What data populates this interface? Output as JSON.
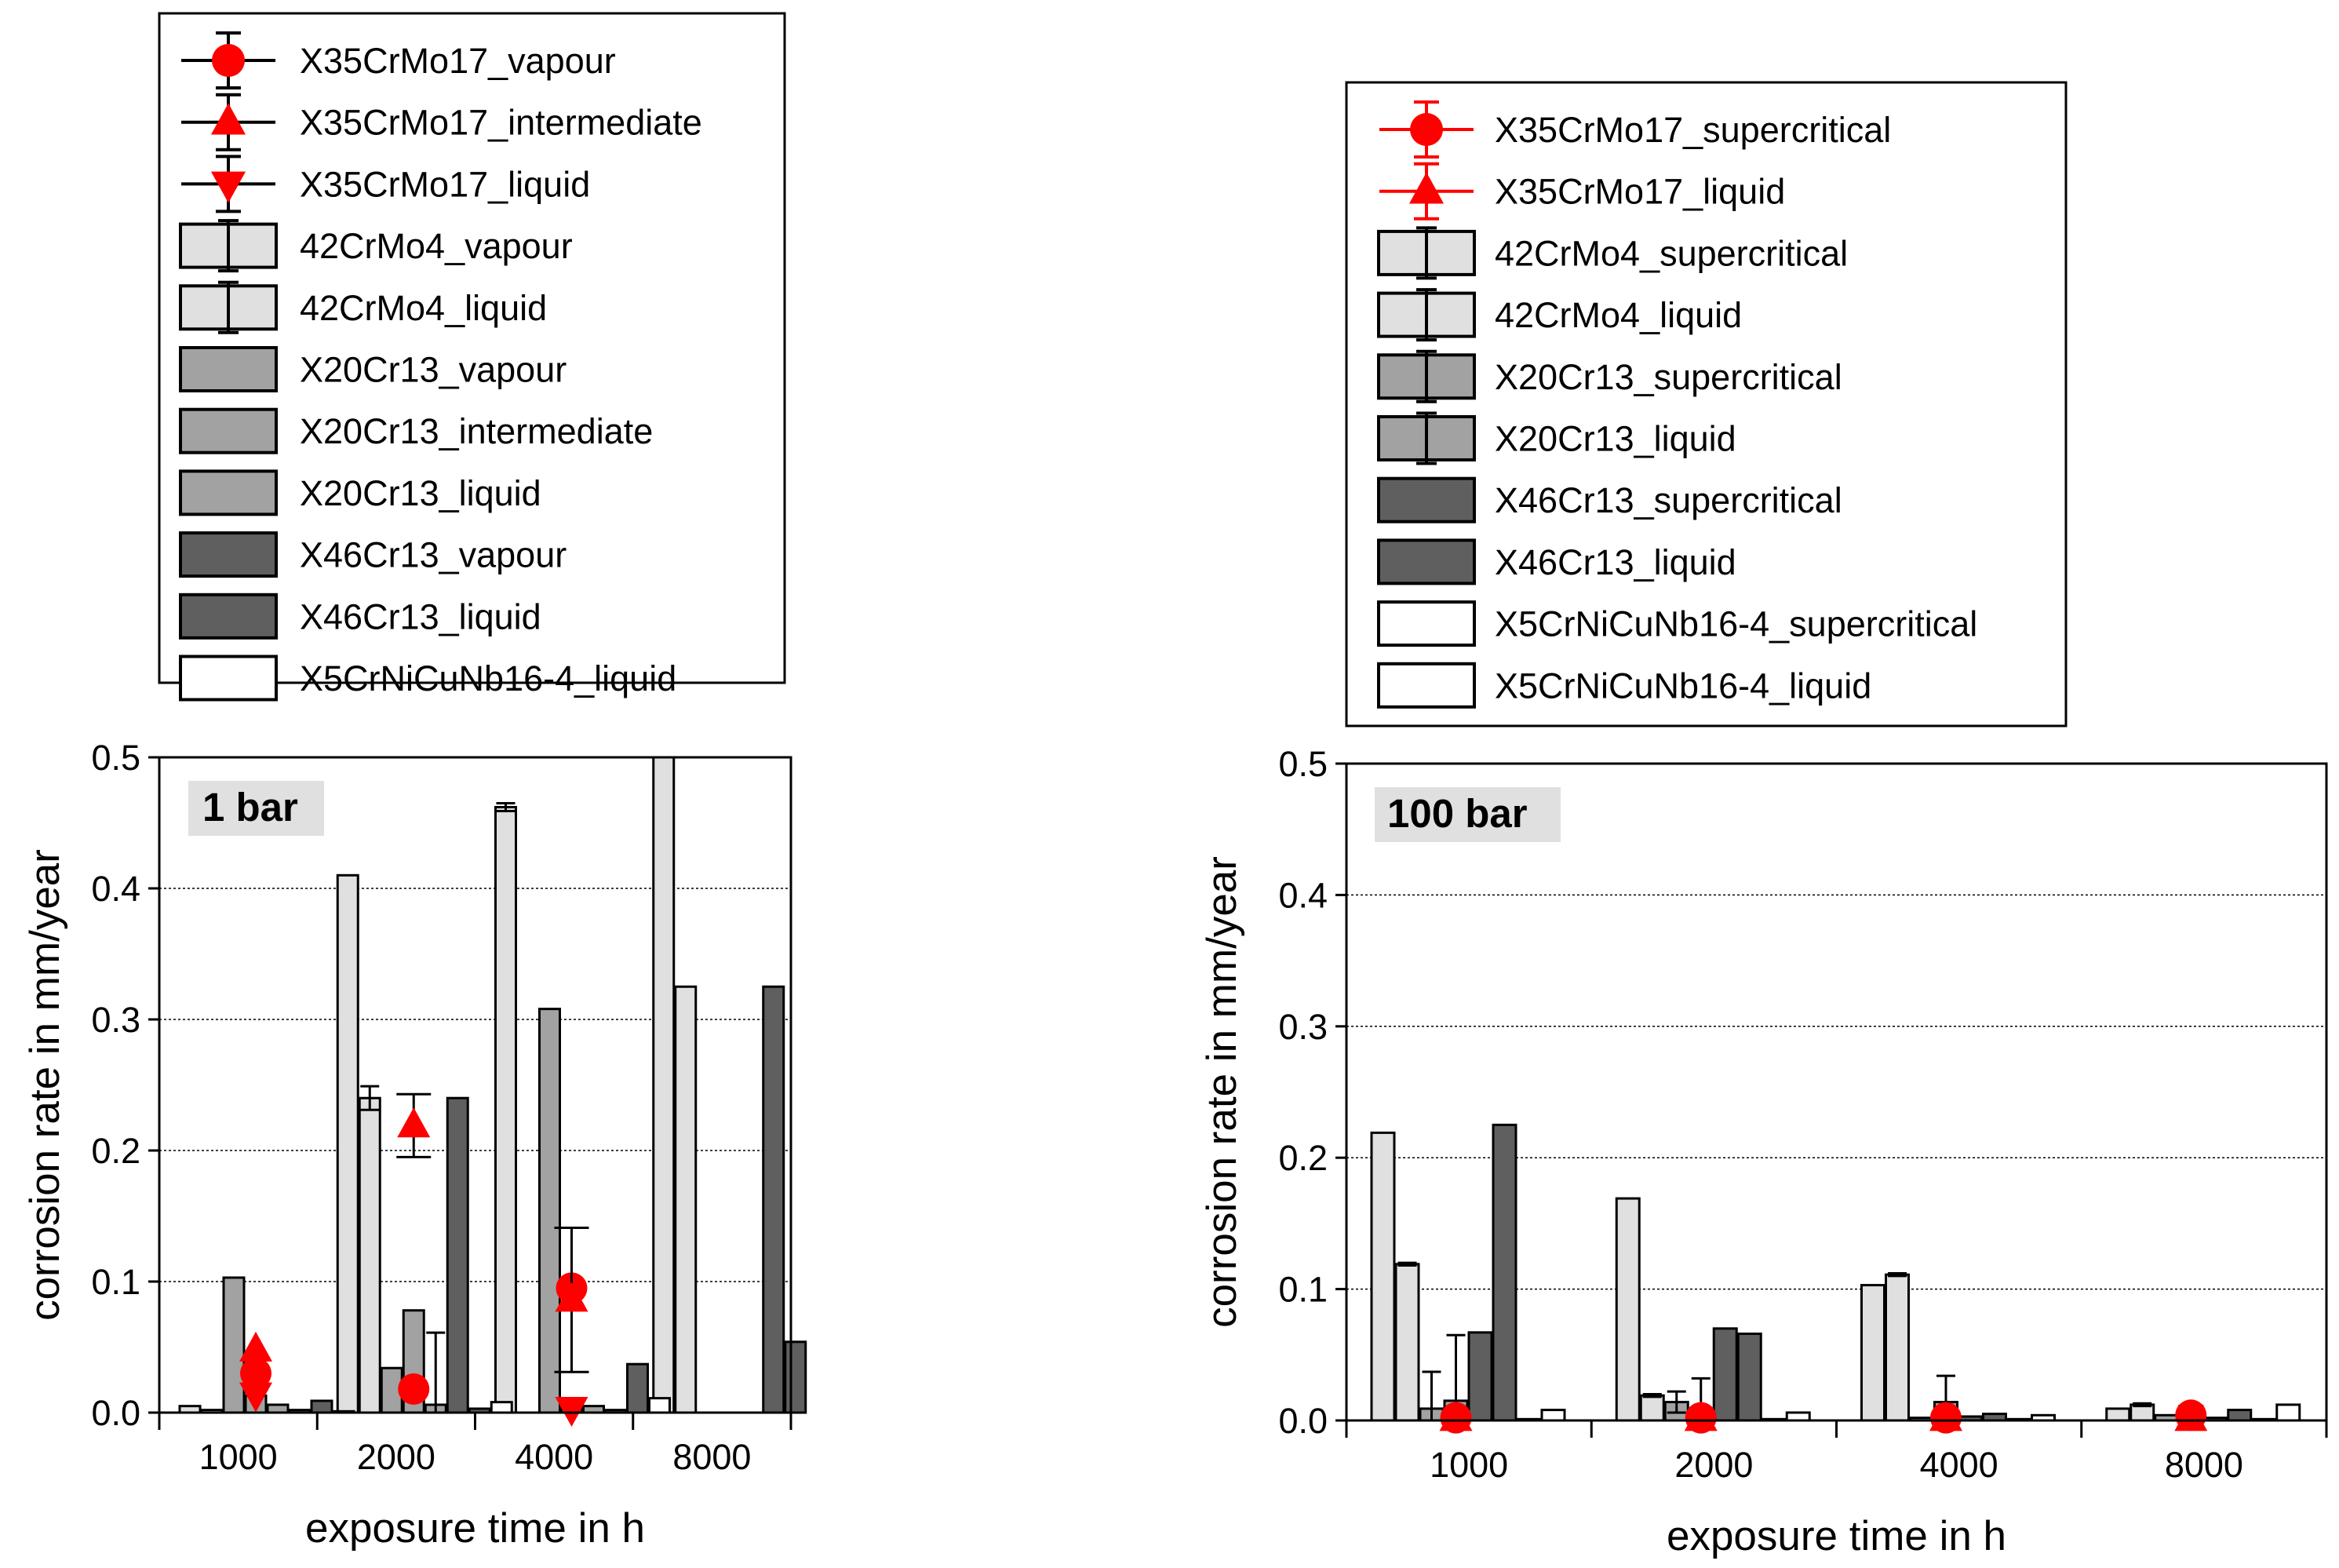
{
  "colors": {
    "red": "#ff0000",
    "42CrMo4": "#e0e0e0",
    "X20Cr13": "#a2a2a2",
    "X46Cr13": "#5f5f5f",
    "X5CrNiCuNb16-4": "#ffffff"
  },
  "chart_data": [
    {
      "type": "bar",
      "title": "1 bar",
      "xlabel": "exposure time in h",
      "ylabel": "corrosion rate in mm/year",
      "ylim": [
        0,
        0.5
      ],
      "yticks": [
        "0.0",
        "0.1",
        "0.2",
        "0.3",
        "0.4",
        "0.5"
      ],
      "categories": [
        "1000",
        "2000",
        "4000",
        "8000"
      ],
      "legend_position": "top",
      "legend": [
        {
          "label": "X35CrMo17_vapour",
          "kind": "marker",
          "marker": "circle",
          "line": "#000000"
        },
        {
          "label": "X35CrMo17_intermediate",
          "kind": "marker",
          "marker": "triangle-up",
          "line": "#000000"
        },
        {
          "label": "X35CrMo17_liquid",
          "kind": "marker",
          "marker": "triangle-down",
          "line": "#000000"
        },
        {
          "label": "42CrMo4_vapour",
          "kind": "bar",
          "fill": "#e0e0e0",
          "errbar": true
        },
        {
          "label": "42CrMo4_liquid",
          "kind": "bar",
          "fill": "#e0e0e0",
          "errbar": true
        },
        {
          "label": "X20Cr13_vapour",
          "kind": "bar",
          "fill": "#a2a2a2",
          "errbar": false
        },
        {
          "label": "X20Cr13_intermediate",
          "kind": "bar",
          "fill": "#a2a2a2",
          "errbar": false
        },
        {
          "label": "X20Cr13_liquid",
          "kind": "bar",
          "fill": "#a2a2a2",
          "errbar": false
        },
        {
          "label": "X46Cr13_vapour",
          "kind": "bar",
          "fill": "#5f5f5f",
          "errbar": false
        },
        {
          "label": "X46Cr13_liquid",
          "kind": "bar",
          "fill": "#5f5f5f",
          "errbar": false
        },
        {
          "label": "X5CrNiCuNb16-4_liquid",
          "kind": "bar",
          "fill": "#ffffff",
          "errbar": false
        }
      ],
      "bar_series": [
        {
          "name": "42CrMo4_vapour",
          "fill": "#e0e0e0",
          "values": [
            0.005,
            0.41,
            0.462,
            0.5
          ],
          "errors": [
            null,
            null,
            0.003,
            null
          ]
        },
        {
          "name": "42CrMo4_liquid",
          "fill": "#e0e0e0",
          "values": [
            0.002,
            0.24,
            null,
            0.325
          ],
          "errors": [
            null,
            0.009,
            null,
            null
          ]
        },
        {
          "name": "X20Cr13_vapour",
          "fill": "#a2a2a2",
          "values": [
            0.103,
            0.034,
            0.308,
            null
          ],
          "errors": [
            null,
            null,
            null,
            null
          ]
        },
        {
          "name": "X20Cr13_intermediate",
          "fill": "#a2a2a2",
          "values": [
            0.013,
            0.078,
            0.006,
            null
          ],
          "errors": [
            null,
            null,
            null,
            null
          ]
        },
        {
          "name": "X20Cr13_liquid",
          "fill": "#a2a2a2",
          "values": [
            0.006,
            0.006,
            0.005,
            null
          ],
          "errors": [
            null,
            0.055,
            null,
            null
          ]
        },
        {
          "name": "X46Cr13_vapour",
          "fill": "#5f5f5f",
          "values": [
            0.002,
            0.24,
            0.002,
            0.325
          ],
          "errors": [
            null,
            null,
            null,
            null
          ]
        },
        {
          "name": "X46Cr13_liquid",
          "fill": "#5f5f5f",
          "values": [
            0.009,
            0.003,
            0.037,
            0.054
          ],
          "errors": [
            null,
            null,
            null,
            null
          ]
        },
        {
          "name": "X5CrNiCuNb16-4_liquid",
          "fill": "#ffffff",
          "values": [
            0.001,
            0.008,
            0.011,
            null
          ],
          "errors": [
            null,
            null,
            null,
            null
          ]
        }
      ],
      "marker_series": [
        {
          "name": "X35CrMo17_vapour",
          "marker": "circle",
          "values": [
            0.03,
            0.018,
            0.095,
            null
          ],
          "errors": [
            null,
            null,
            null,
            null
          ]
        },
        {
          "name": "X35CrMo17_intermediate",
          "marker": "triangle-up",
          "values": [
            0.048,
            0.219,
            0.086,
            null
          ],
          "errors": [
            null,
            0.024,
            0.055,
            null
          ]
        },
        {
          "name": "X35CrMo17_liquid",
          "marker": "triangle-down",
          "values": [
            0.014,
            null,
            0.003,
            null
          ],
          "errors": [
            null,
            null,
            null,
            null
          ]
        }
      ]
    },
    {
      "type": "bar",
      "title": "100 bar",
      "xlabel": "exposure time in h",
      "ylabel": "corrosion rate in mm/year",
      "ylim": [
        0,
        0.5
      ],
      "yticks": [
        "0.0",
        "0.1",
        "0.2",
        "0.3",
        "0.4",
        "0.5"
      ],
      "categories": [
        "1000",
        "2000",
        "4000",
        "8000"
      ],
      "legend_position": "top",
      "legend": [
        {
          "label": "X35CrMo17_supercritical",
          "kind": "marker",
          "marker": "circle",
          "line": "#ff0000"
        },
        {
          "label": "X35CrMo17_liquid",
          "kind": "marker",
          "marker": "triangle-up",
          "line": "#ff0000"
        },
        {
          "label": "42CrMo4_supercritical",
          "kind": "bar",
          "fill": "#e0e0e0",
          "errbar": true
        },
        {
          "label": "42CrMo4_liquid",
          "kind": "bar",
          "fill": "#e0e0e0",
          "errbar": true
        },
        {
          "label": "X20Cr13_supercritical",
          "kind": "bar",
          "fill": "#a2a2a2",
          "errbar": true
        },
        {
          "label": "X20Cr13_liquid",
          "kind": "bar",
          "fill": "#a2a2a2",
          "errbar": true
        },
        {
          "label": "X46Cr13_supercritical",
          "kind": "bar",
          "fill": "#5f5f5f",
          "errbar": false
        },
        {
          "label": "X46Cr13_liquid",
          "kind": "bar",
          "fill": "#5f5f5f",
          "errbar": false
        },
        {
          "label": "X5CrNiCuNb16-4_supercritical",
          "kind": "bar",
          "fill": "#ffffff",
          "errbar": false
        },
        {
          "label": "X5CrNiCuNb16-4_liquid",
          "kind": "bar",
          "fill": "#ffffff",
          "errbar": false
        }
      ],
      "bar_series": [
        {
          "name": "42CrMo4_supercritical",
          "fill": "#e0e0e0",
          "values": [
            0.219,
            0.169,
            0.103,
            0.009
          ],
          "errors": [
            null,
            null,
            null,
            null
          ]
        },
        {
          "name": "42CrMo4_liquid",
          "fill": "#e0e0e0",
          "values": [
            0.119,
            0.019,
            0.111,
            0.012
          ],
          "errors": [
            0.001,
            0.001,
            0.001,
            0.001
          ]
        },
        {
          "name": "X20Cr13_supercritical",
          "fill": "#a2a2a2",
          "values": [
            0.009,
            0.014,
            0.002,
            0.004
          ],
          "errors": [
            0.028,
            0.008,
            null,
            null
          ]
        },
        {
          "name": "X20Cr13_liquid",
          "fill": "#a2a2a2",
          "values": [
            0.015,
            0.009,
            0.014,
            0.011
          ],
          "errors": [
            0.05,
            0.023,
            0.02,
            null
          ]
        },
        {
          "name": "X46Cr13_supercritical",
          "fill": "#5f5f5f",
          "values": [
            0.067,
            0.07,
            0.003,
            0.002
          ],
          "errors": [
            null,
            null,
            null,
            null
          ]
        },
        {
          "name": "X46Cr13_liquid",
          "fill": "#5f5f5f",
          "values": [
            0.225,
            0.066,
            0.005,
            0.008
          ],
          "errors": [
            null,
            null,
            null,
            null
          ]
        },
        {
          "name": "X5CrNiCuNb16-4_supercritical",
          "fill": "#ffffff",
          "values": [
            0.001,
            0.001,
            0.001,
            0.001
          ],
          "errors": [
            null,
            null,
            null,
            null
          ]
        },
        {
          "name": "X5CrNiCuNb16-4_liquid",
          "fill": "#ffffff",
          "values": [
            0.008,
            0.006,
            0.004,
            0.012
          ],
          "errors": [
            null,
            null,
            null,
            null
          ]
        }
      ],
      "marker_series": [
        {
          "name": "X35CrMo17_supercritical",
          "marker": "circle",
          "values": [
            0.002,
            0.002,
            0.002,
            0.004
          ],
          "errors": [
            null,
            null,
            null,
            null
          ]
        },
        {
          "name": "X35CrMo17_liquid",
          "marker": "triangle-up",
          "values": [
            0.001,
            0.001,
            0.001,
            0.001
          ],
          "errors": [
            null,
            null,
            null,
            null
          ]
        }
      ]
    }
  ]
}
